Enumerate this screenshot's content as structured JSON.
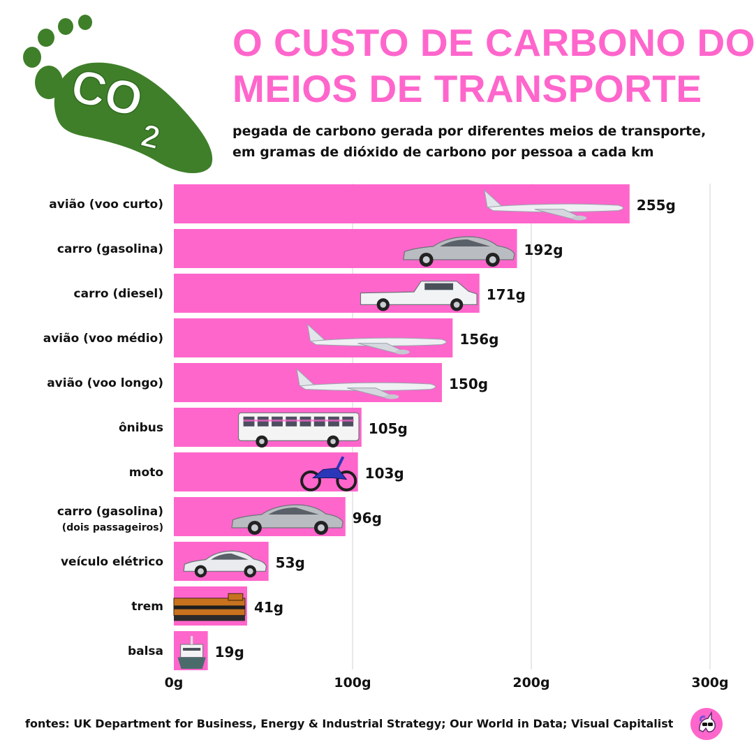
{
  "title_line1": "O CUSTO DE CARBONO DOS",
  "title_line2": "MEIOS DE  TRANSPORTE",
  "subtitle_line1": "pegada de carbono gerada por diferentes meios de transporte,",
  "subtitle_line2": "em gramas de dióxido de carbono por pessoa a cada km",
  "logo_text": "CO",
  "logo_subscript": "2",
  "sources": "fontes: UK Department for Business, Energy & Industrial Strategy; Our World in Data; Visual Capitalist",
  "colors": {
    "bar": "#ff66cc",
    "title": "#ff66cc",
    "grid": "#d9d9d9",
    "logo": "#3f7f2a"
  },
  "chart_data": {
    "type": "bar",
    "orientation": "horizontal",
    "categories": [
      "avião (voo curto)",
      "carro (gasolina)",
      "carro (diesel)",
      "avião (voo médio)",
      "avião (voo longo)",
      "ônibus",
      "moto",
      "carro (gasolina)",
      "veículo elétrico",
      "trem",
      "balsa"
    ],
    "category_sublabels": [
      "",
      "",
      "",
      "",
      "",
      "",
      "",
      "(dois passageiros)",
      "",
      "",
      ""
    ],
    "values": [
      255,
      192,
      171,
      156,
      150,
      105,
      103,
      96,
      53,
      41,
      19
    ],
    "value_labels": [
      "255g",
      "192g",
      "171g",
      "156g",
      "150g",
      "105g",
      "103g",
      "96g",
      "53g",
      "41g",
      "19g"
    ],
    "icons": [
      "airplane",
      "sedan-car",
      "pickup-truck",
      "airplane",
      "airplane",
      "bus",
      "motorcycle",
      "sedan-car",
      "electric-car",
      "locomotive",
      "ferry"
    ],
    "xlim": [
      0,
      300
    ],
    "xticks": [
      0,
      100,
      200,
      300
    ],
    "xtick_labels": [
      "0g",
      "100g",
      "200g",
      "300g"
    ],
    "grid": true
  }
}
